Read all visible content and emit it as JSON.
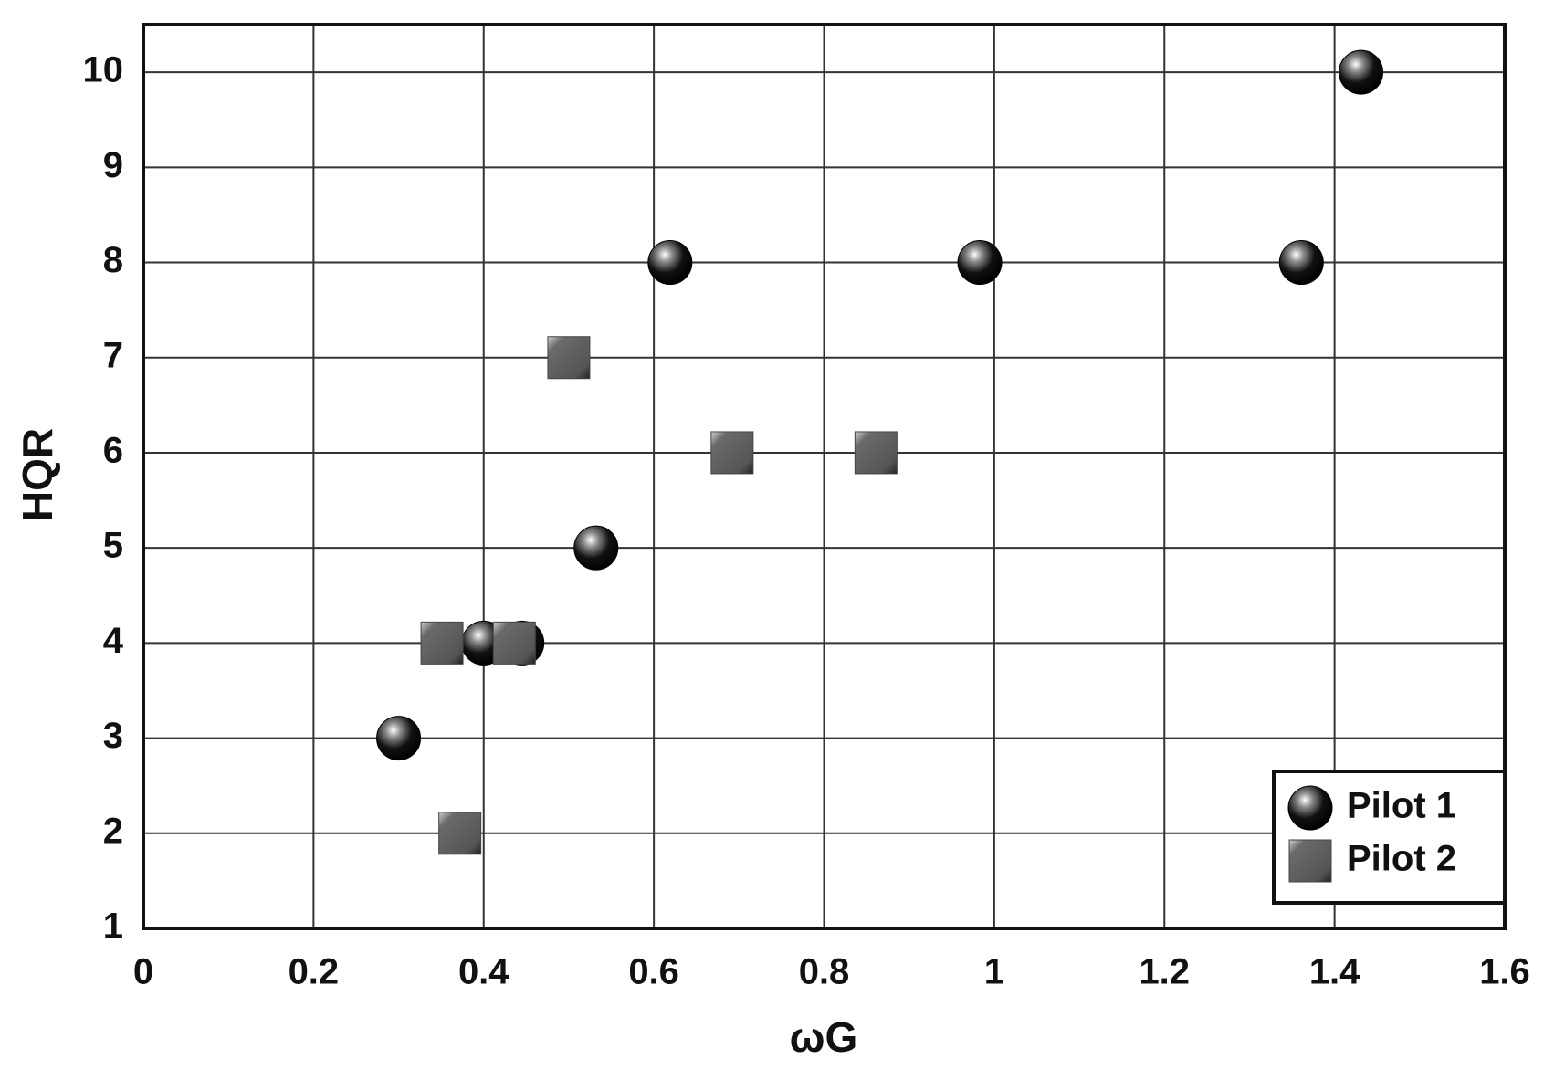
{
  "chart_data": {
    "type": "scatter",
    "x_label": "ωG",
    "y_label": "HQR",
    "xlim": [
      0,
      1.6
    ],
    "xticks": [
      0,
      0.2,
      0.4,
      0.6,
      0.8,
      1,
      1.2,
      1.4,
      1.6
    ],
    "ylim": [
      1,
      10.5
    ],
    "yticks": [
      1,
      2,
      3,
      4,
      5,
      6,
      7,
      8,
      9,
      10
    ],
    "grid": true,
    "legend": "lower right",
    "series": [
      {
        "name": "Pilot 1",
        "marker": "sphere",
        "color": "#111111",
        "x": [
          0.3,
          0.4,
          0.445,
          0.532,
          0.619,
          0.983,
          1.361,
          1.431
        ],
        "values": [
          3,
          4,
          4,
          5,
          8,
          8,
          8,
          10
        ]
      },
      {
        "name": "Pilot 2",
        "marker": "square",
        "color": "#555555",
        "x": [
          0.351,
          0.372,
          0.436,
          0.5,
          0.692,
          0.861
        ],
        "values": [
          4,
          2,
          4,
          7,
          6,
          6
        ]
      }
    ]
  }
}
